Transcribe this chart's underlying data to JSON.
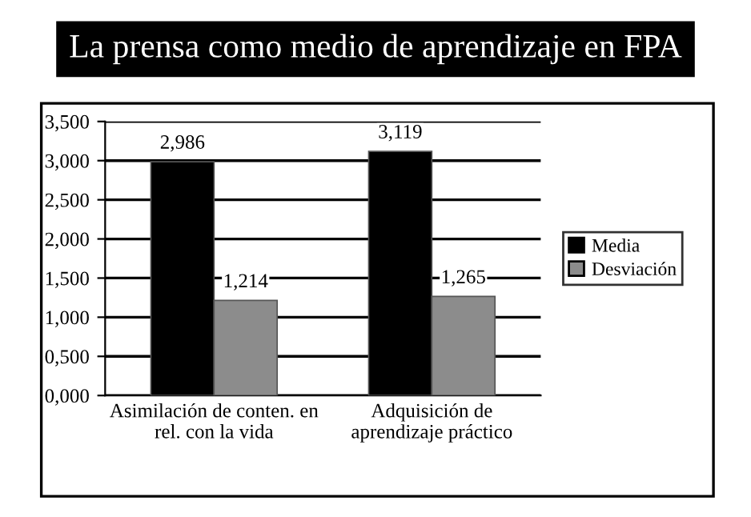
{
  "chart_data": {
    "type": "bar",
    "title": "La prensa como medio de aprendizaje en FPA",
    "categories": [
      "Asimilación de conten. en\nrel. con la vida",
      "Adquisición de\naprendizaje práctico"
    ],
    "series": [
      {
        "name": "Media",
        "color": "#000000",
        "values": [
          2.986,
          3.119
        ],
        "value_labels": [
          "2,986",
          "3,119"
        ]
      },
      {
        "name": "Desviación",
        "color": "#8c8c8c",
        "values": [
          1.214,
          1.265
        ],
        "value_labels": [
          "1,214",
          "1,265"
        ]
      }
    ],
    "ylim": [
      0,
      3.5
    ],
    "yticks": [
      {
        "value": 0,
        "label": "0,000"
      },
      {
        "value": 0.5,
        "label": "0,500"
      },
      {
        "value": 1,
        "label": "1,000"
      },
      {
        "value": 1.5,
        "label": "1,500"
      },
      {
        "value": 2,
        "label": "2,000"
      },
      {
        "value": 2.5,
        "label": "2,500"
      },
      {
        "value": 3,
        "label": "3,000"
      },
      {
        "value": 3.5,
        "label": "3,500"
      }
    ],
    "grid": "y",
    "legend": "right"
  }
}
